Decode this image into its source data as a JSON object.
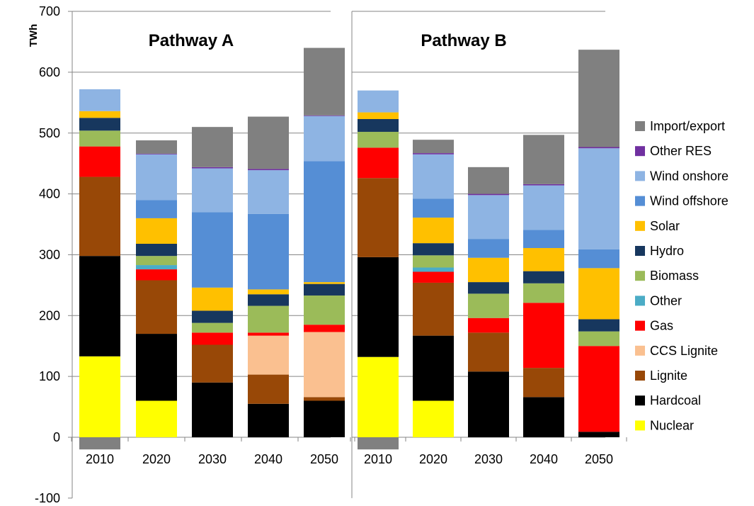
{
  "chart_data": {
    "type": "bar",
    "stacked": true,
    "ylabel": "TWh",
    "ylim": [
      -100,
      700
    ],
    "yticks": [
      -100,
      0,
      100,
      200,
      300,
      400,
      500,
      600,
      700
    ],
    "grid": true,
    "legend_position": "right",
    "categories": [
      "2010",
      "2020",
      "2030",
      "2040",
      "2050"
    ],
    "series_order": [
      "Nuclear",
      "Hardcoal",
      "Lignite",
      "CCS Lignite",
      "Gas",
      "Other",
      "Biomass",
      "Hydro",
      "Solar",
      "Wind offshore",
      "Wind onshore",
      "Other RES",
      "Import/export"
    ],
    "colors": {
      "Nuclear": "#ffff00",
      "Hardcoal": "#000000",
      "Lignite": "#984807",
      "CCS Lignite": "#fac090",
      "Gas": "#ff0000",
      "Other": "#4bacc6",
      "Biomass": "#9bbb59",
      "Hydro": "#17375e",
      "Solar": "#ffc000",
      "Wind offshore": "#558ed5",
      "Wind onshore": "#8eb4e3",
      "Other RES": "#7030a0",
      "Import/export": "#808080"
    },
    "legend": [
      "Import/export",
      "Other RES",
      "Wind onshore",
      "Wind offshore",
      "Solar",
      "Hydro",
      "Biomass",
      "Other",
      "Gas",
      "CCS Lignite",
      "Lignite",
      "Hardcoal",
      "Nuclear"
    ],
    "panels": [
      {
        "title": "Pathway A",
        "series": [
          {
            "name": "Nuclear",
            "values": [
              133,
              60,
              0,
              0,
              0
            ]
          },
          {
            "name": "Hardcoal",
            "values": [
              165,
              110,
              90,
              55,
              60
            ]
          },
          {
            "name": "Lignite",
            "values": [
              130,
              88,
              62,
              48,
              6
            ]
          },
          {
            "name": "CCS Lignite",
            "values": [
              0,
              0,
              0,
              64,
              107
            ]
          },
          {
            "name": "Gas",
            "values": [
              50,
              18,
              20,
              5,
              12
            ]
          },
          {
            "name": "Other",
            "values": [
              0,
              7,
              0,
              0,
              0
            ]
          },
          {
            "name": "Biomass",
            "values": [
              26,
              15,
              16,
              44,
              48
            ]
          },
          {
            "name": "Hydro",
            "values": [
              21,
              20,
              20,
              19,
              19
            ]
          },
          {
            "name": "Solar",
            "values": [
              11,
              42,
              38,
              8,
              3
            ]
          },
          {
            "name": "Wind offshore",
            "values": [
              0,
              30,
              124,
              124,
              199
            ]
          },
          {
            "name": "Wind onshore",
            "values": [
              36,
              75,
              72,
              72,
              74
            ]
          },
          {
            "name": "Other RES",
            "values": [
              0,
              1,
              2,
              2,
              1
            ]
          },
          {
            "name": "Import/export",
            "values": [
              -20,
              22,
              66,
              86,
              111
            ]
          }
        ]
      },
      {
        "title": "Pathway B",
        "series": [
          {
            "name": "Nuclear",
            "values": [
              132,
              60,
              0,
              0,
              0
            ]
          },
          {
            "name": "Hardcoal",
            "values": [
              164,
              107,
              108,
              66,
              9
            ]
          },
          {
            "name": "Lignite",
            "values": [
              130,
              87,
              64,
              48,
              0
            ]
          },
          {
            "name": "CCS Lignite",
            "values": [
              0,
              0,
              0,
              0,
              0
            ]
          },
          {
            "name": "Gas",
            "values": [
              50,
              18,
              24,
              107,
              141
            ]
          },
          {
            "name": "Other",
            "values": [
              0,
              7,
              0,
              0,
              0
            ]
          },
          {
            "name": "Biomass",
            "values": [
              26,
              20,
              40,
              32,
              24
            ]
          },
          {
            "name": "Hydro",
            "values": [
              21,
              20,
              19,
              20,
              20
            ]
          },
          {
            "name": "Solar",
            "values": [
              11,
              42,
              40,
              38,
              84
            ]
          },
          {
            "name": "Wind offshore",
            "values": [
              0,
              31,
              31,
              30,
              31
            ]
          },
          {
            "name": "Wind onshore",
            "values": [
              36,
              73,
              72,
              73,
              166
            ]
          },
          {
            "name": "Other RES",
            "values": [
              0,
              2,
              2,
              2,
              2
            ]
          },
          {
            "name": "Import/export",
            "values": [
              -20,
              22,
              44,
              81,
              160
            ]
          }
        ]
      }
    ]
  }
}
